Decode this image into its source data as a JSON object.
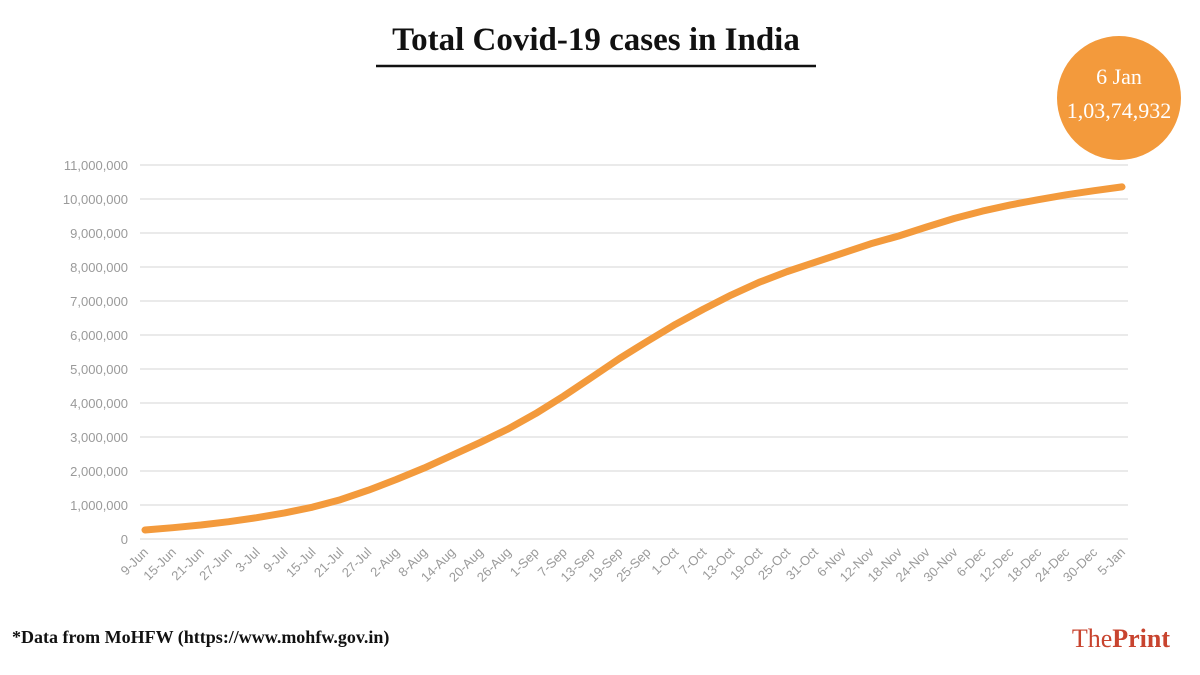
{
  "chart_data": {
    "type": "line",
    "title": "Total Covid-19 cases in India",
    "categories": [
      "9-Jun",
      "15-Jun",
      "21-Jun",
      "27-Jun",
      "3-Jul",
      "9-Jul",
      "15-Jul",
      "21-Jul",
      "27-Jul",
      "2-Aug",
      "8-Aug",
      "14-Aug",
      "20-Aug",
      "26-Aug",
      "1-Sep",
      "7-Sep",
      "13-Sep",
      "19-Sep",
      "25-Sep",
      "1-Oct",
      "7-Oct",
      "13-Oct",
      "19-Oct",
      "25-Oct",
      "31-Oct",
      "6-Nov",
      "12-Nov",
      "18-Nov",
      "24-Nov",
      "30-Nov",
      "6-Dec",
      "12-Dec",
      "18-Dec",
      "24-Dec",
      "30-Dec",
      "5-Jan"
    ],
    "values": [
      266000,
      333000,
      411000,
      509000,
      626000,
      768000,
      936000,
      1155000,
      1435000,
      1750000,
      2088000,
      2462000,
      2836000,
      3234000,
      3692000,
      4204000,
      4754000,
      5308000,
      5818000,
      6312000,
      6757000,
      7175000,
      7550000,
      7864000,
      8137000,
      8411000,
      8683000,
      8912000,
      9177000,
      9431000,
      9644000,
      9826000,
      9980000,
      10123000,
      10244000,
      10356000
    ],
    "color": "#f39a3c",
    "ylim": [
      0,
      11000000
    ],
    "yticks": [
      0,
      {
        "value": 1000000,
        "label": "1,000,000"
      },
      {
        "value": 2000000,
        "label": "2,000,000"
      },
      {
        "value": 3000000,
        "label": "3,000,000"
      },
      {
        "value": 4000000,
        "label": "4,000,000"
      },
      {
        "value": 5000000,
        "label": "5,000,000"
      },
      {
        "value": 6000000,
        "label": "6,000,000"
      },
      {
        "value": 7000000,
        "label": "7,000,000"
      },
      {
        "value": 8000000,
        "label": "8,000,000"
      },
      {
        "value": 9000000,
        "label": "9,000,000"
      },
      {
        "value": 10000000,
        "label": "10,000,000"
      },
      {
        "value": 11000000,
        "label": "11,000,000"
      }
    ],
    "grid": true,
    "annotation": {
      "date": "6 Jan",
      "value": 10374932,
      "label": "1,03,74,932"
    },
    "note": "*Data from MoHFW (https://www.mohfw.gov.in)",
    "logo": {
      "the": "The",
      "print": "Print"
    }
  }
}
